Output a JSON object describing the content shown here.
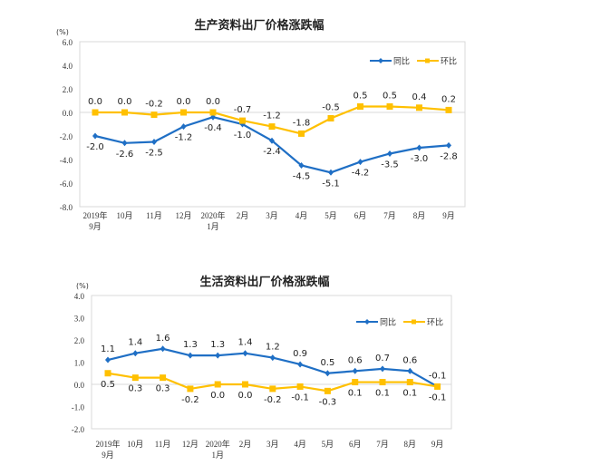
{
  "chart_data": [
    {
      "type": "line",
      "title": "生产资料出厂价格涨跌幅",
      "ylabel": "(%)",
      "ylim": [
        -8,
        6
      ],
      "yticks": [
        "6.0",
        "4.0",
        "2.0",
        "0.0",
        "-2.0",
        "-4.0",
        "-6.0",
        "-8.0"
      ],
      "categories": [
        [
          "2019年",
          "9月"
        ],
        [
          "10月"
        ],
        [
          "11月"
        ],
        [
          "12月"
        ],
        [
          "2020年",
          "1月"
        ],
        [
          "2月"
        ],
        [
          "3月"
        ],
        [
          "4月"
        ],
        [
          "5月"
        ],
        [
          "6月"
        ],
        [
          "7月"
        ],
        [
          "8月"
        ],
        [
          "9月"
        ]
      ],
      "legend": "top-right",
      "grid": false,
      "series": [
        {
          "name": "同比",
          "color": "#1f6fc5",
          "marker": "diamond",
          "values": [
            -2.0,
            -2.6,
            -2.5,
            -1.2,
            -0.4,
            -1.0,
            -2.4,
            -4.5,
            -5.1,
            -4.2,
            -3.5,
            -3.0,
            -2.8
          ],
          "labels": [
            "-2.0",
            "-2.6",
            "-2.5",
            "-1.2",
            "-0.4",
            "-1.0",
            "-2.4",
            "-4.5",
            "-5.1",
            "-4.2",
            "-3.5",
            "-3.0",
            "-2.8"
          ]
        },
        {
          "name": "环比",
          "color": "#ffc000",
          "marker": "square",
          "values": [
            0.0,
            0.0,
            -0.2,
            0.0,
            0.0,
            -0.7,
            -1.2,
            -1.8,
            -0.5,
            0.5,
            0.5,
            0.4,
            0.2
          ],
          "labels": [
            "0.0",
            "0.0",
            "-0.2",
            "0.0",
            "0.0",
            "-0.7",
            "-1.2",
            "-1.8",
            "-0.5",
            "0.5",
            "0.5",
            "0.4",
            "0.2"
          ]
        }
      ]
    },
    {
      "type": "line",
      "title": "生活资料出厂价格涨跌幅",
      "ylabel": "(%)",
      "ylim": [
        -2,
        4
      ],
      "yticks": [
        "4.0",
        "3.0",
        "2.0",
        "1.0",
        "0.0",
        "-1.0",
        "-2.0"
      ],
      "categories": [
        [
          "2019年",
          "9月"
        ],
        [
          "10月"
        ],
        [
          "11月"
        ],
        [
          "12月"
        ],
        [
          "2020年",
          "1月"
        ],
        [
          "2月"
        ],
        [
          "3月"
        ],
        [
          "4月"
        ],
        [
          "5月"
        ],
        [
          "6月"
        ],
        [
          "7月"
        ],
        [
          "8月"
        ],
        [
          "9月"
        ]
      ],
      "legend": "top-right",
      "grid": false,
      "series": [
        {
          "name": "同比",
          "color": "#1f6fc5",
          "marker": "diamond",
          "values": [
            1.1,
            1.4,
            1.6,
            1.3,
            1.3,
            1.4,
            1.2,
            0.9,
            0.5,
            0.6,
            0.7,
            0.6,
            -0.1
          ],
          "labels": [
            "1.1",
            "1.4",
            "1.6",
            "1.3",
            "1.3",
            "1.4",
            "1.2",
            "0.9",
            "0.5",
            "0.6",
            "0.7",
            "0.6",
            "-0.1"
          ]
        },
        {
          "name": "环比",
          "color": "#ffc000",
          "marker": "square",
          "values": [
            0.5,
            0.3,
            0.3,
            -0.2,
            0.0,
            0.0,
            -0.2,
            -0.1,
            -0.3,
            0.1,
            0.1,
            0.1,
            -0.1
          ],
          "labels": [
            "0.5",
            "0.3",
            "0.3",
            "-0.2",
            "0.0",
            "0.0",
            "-0.2",
            "-0.1",
            "-0.3",
            "0.1",
            "0.1",
            "0.1",
            "-0.1"
          ]
        }
      ]
    }
  ]
}
